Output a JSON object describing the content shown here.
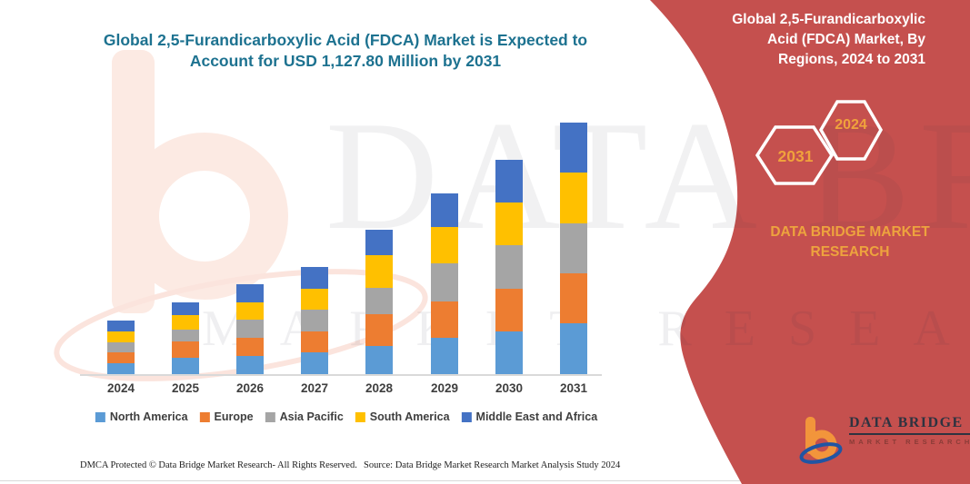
{
  "header": {
    "title_line1": "Global 2,5-Furandicarboxylic Acid (FDCA) Market is Expected to",
    "title_line2": "Account for USD 1,127.80 Million by 2031"
  },
  "right_panel": {
    "title_lines": [
      "Global 2,5-Furandicarboxylic",
      "Acid (FDCA) Market, By",
      "Regions, 2024 to 2031"
    ],
    "hexagons": [
      {
        "label": "2031"
      },
      {
        "label": "2024"
      }
    ],
    "brand_line1": "DATA BRIDGE MARKET",
    "brand_line2": "RESEARCH",
    "panel_color": "#c5504e",
    "hexagon_text_color": "#f0a23c",
    "brand_text_color": "#eda33e"
  },
  "watermark": {
    "brand_text": "DATA BRIDGE",
    "sub_text": "MARKET RESEARCH"
  },
  "logo": {
    "name": "DATA BRIDGE",
    "subtitle": "MARKET RESEARCH"
  },
  "footer": {
    "left": "DMCA Protected © Data Bridge Market Research-  All Rights Reserved.",
    "source": "Source: Data Bridge Market Research  Market Analysis Study 2024"
  },
  "chart_data": {
    "type": "bar",
    "stacked": true,
    "title": "Global 2,5-Furandicarboxylic Acid (FDCA) Market is Expected to Account for USD 1,127.80 Million by 2031",
    "unit": "USD Million",
    "xlabel": "",
    "ylabel": "",
    "ylim": [
      0,
      1200
    ],
    "grid": false,
    "value_axis_visible": false,
    "legend_position": "bottom",
    "categories": [
      "2024",
      "2025",
      "2026",
      "2027",
      "2028",
      "2029",
      "2030",
      "2031"
    ],
    "series": [
      {
        "name": "North America",
        "color": "#5B9BD5",
        "values": [
          48,
          73,
          81,
          96,
          126,
          163,
          192,
          226
        ]
      },
      {
        "name": "Europe",
        "color": "#ED7D31",
        "values": [
          48,
          73,
          81,
          96,
          142,
          163,
          192,
          226
        ]
      },
      {
        "name": "Asia Pacific",
        "color": "#A5A5A5",
        "values": [
          48,
          53,
          81,
          96,
          118,
          171,
          193,
          225
        ]
      },
      {
        "name": "South America",
        "color": "#FFC000",
        "values": [
          48,
          65,
          80,
          96,
          147,
          163,
          192,
          225
        ]
      },
      {
        "name": "Middle East and Africa",
        "color": "#4472C4",
        "values": [
          48,
          57,
          80,
          96,
          114,
          151,
          192,
          225.8
        ]
      }
    ],
    "estimated_totals": [
      240,
      321,
      403,
      480,
      647,
      811,
      961,
      1127.8
    ],
    "labeled_total_2031": 1127.8
  }
}
